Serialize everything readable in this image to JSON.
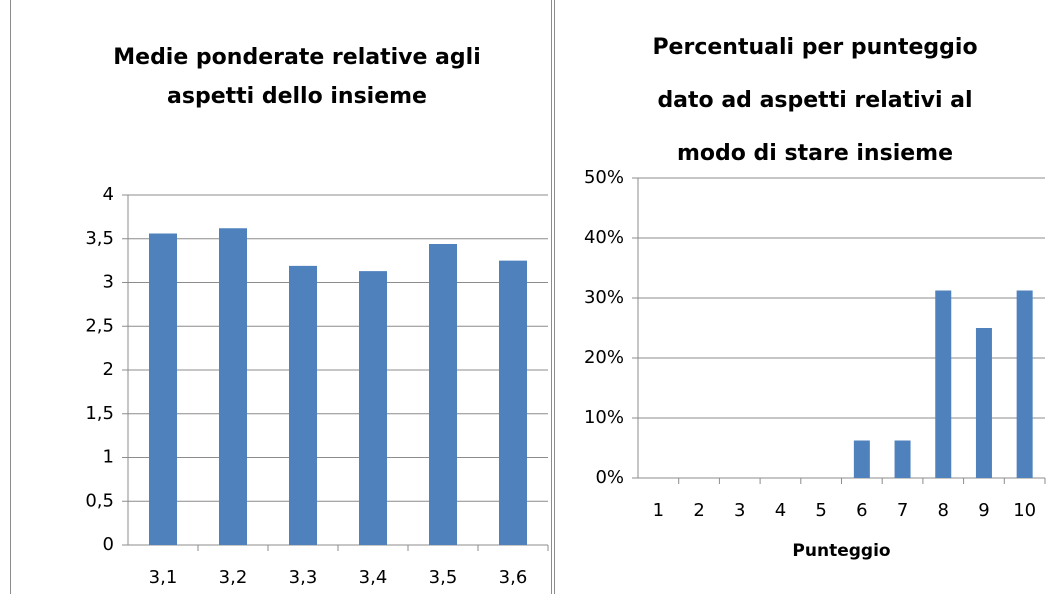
{
  "chart_data": [
    {
      "type": "bar",
      "title": [
        "Medie ponderate relative agli",
        "aspetti dello insieme"
      ],
      "categories": [
        "3,1",
        "3,2",
        "3,3",
        "3,4",
        "3,5",
        "3,6"
      ],
      "values": [
        3.56,
        3.62,
        3.19,
        3.13,
        3.44,
        3.25
      ],
      "color": "#4f81bd",
      "ylim": [
        0,
        4
      ],
      "yticks": [
        0,
        {
          "value": 0.5,
          "label": "0,5"
        },
        1,
        {
          "value": 1.5,
          "label": "1,5"
        },
        2,
        {
          "value": 2.5,
          "label": "2,5"
        },
        3,
        {
          "value": 3.5,
          "label": "3,5"
        },
        4
      ],
      "grid": true
    },
    {
      "type": "bar",
      "title": [
        "Percentuali per punteggio",
        "dato ad aspetti relativi al",
        "modo di stare insieme"
      ],
      "x_label": "Punteggio",
      "categories": [
        "1",
        "2",
        "3",
        "4",
        "5",
        "6",
        "7",
        "8",
        "9",
        "10"
      ],
      "values": [
        0,
        0,
        0,
        0,
        0,
        6.25,
        6.25,
        31.25,
        25,
        31.25
      ],
      "color": "#4f81bd",
      "ylim": [
        0,
        50
      ],
      "yticks": [
        {
          "value": 0,
          "label": "0%"
        },
        {
          "value": 10,
          "label": "10%"
        },
        {
          "value": 20,
          "label": "20%"
        },
        {
          "value": 30,
          "label": "30%"
        },
        {
          "value": 40,
          "label": "40%"
        },
        {
          "value": 50,
          "label": "50%"
        }
      ],
      "grid": true
    }
  ]
}
